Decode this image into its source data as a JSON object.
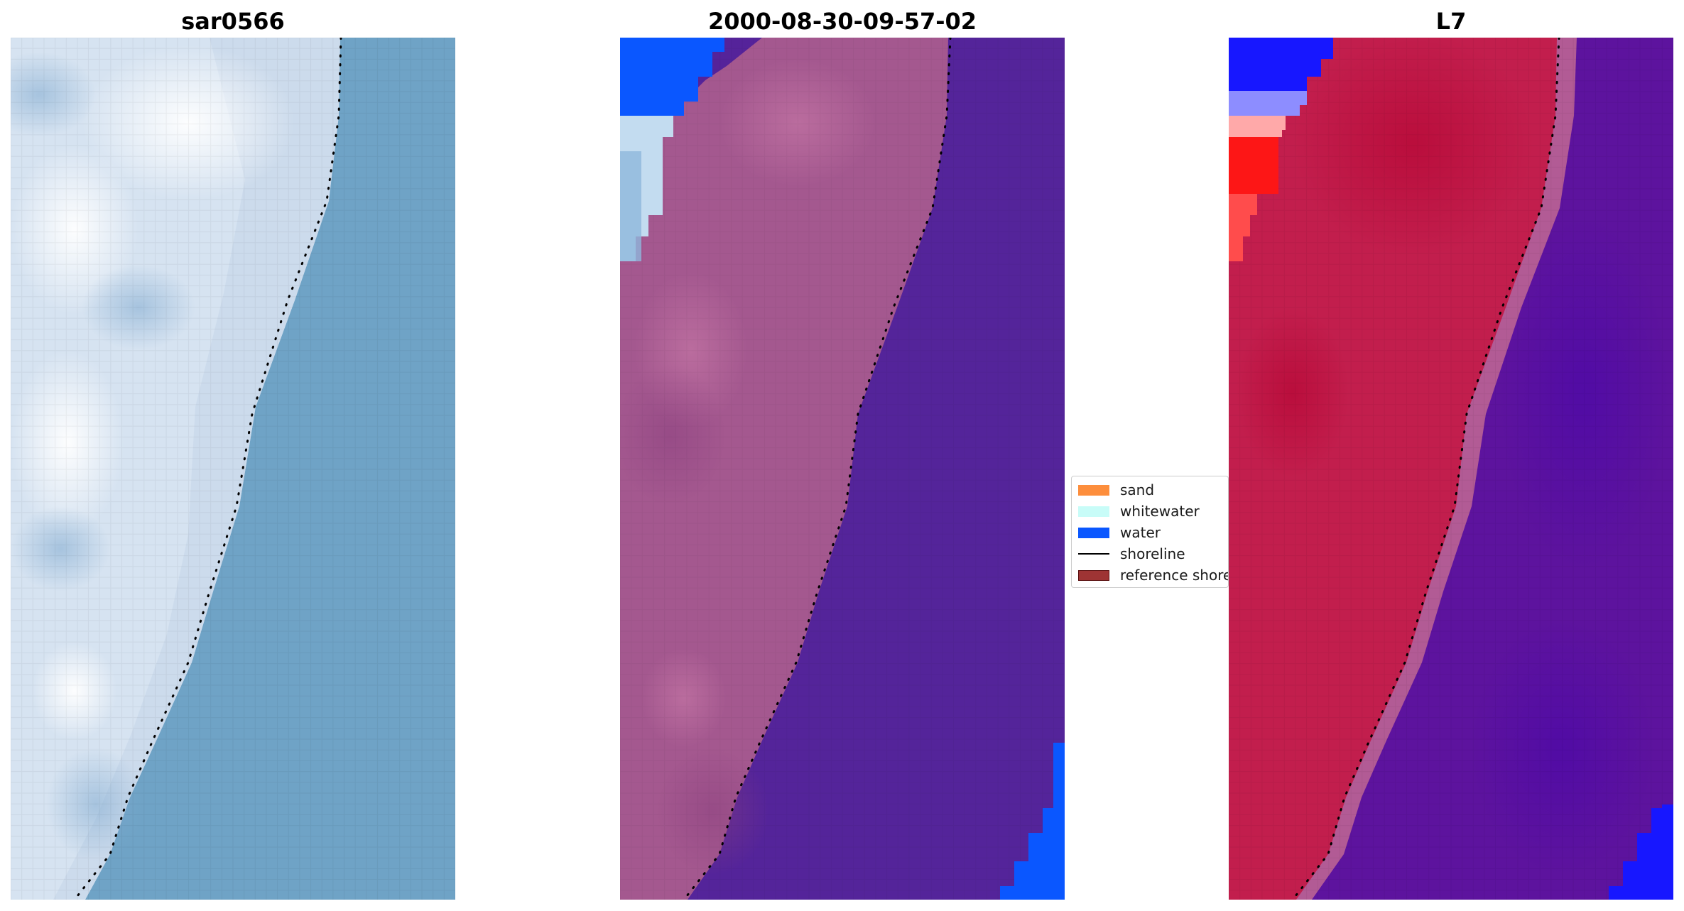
{
  "panels": [
    {
      "id": "rgb",
      "title": "sar0566"
    },
    {
      "id": "classified",
      "title": "2000-08-30-09-57-02"
    },
    {
      "id": "index",
      "title": "L7"
    }
  ],
  "legend": {
    "items": [
      {
        "label": "sand",
        "kind": "patch",
        "color": "#fd8e3c"
      },
      {
        "label": "whitewater",
        "kind": "patch",
        "color": "#c8fcf8"
      },
      {
        "label": "water",
        "kind": "patch",
        "color": "#0a57ff"
      },
      {
        "label": "shoreline",
        "kind": "line",
        "color": "#000000"
      },
      {
        "label": "reference shoreline",
        "kind": "patch",
        "color": "#9e3434"
      }
    ]
  },
  "colors": {
    "rgb_water": "#6fa3c6",
    "rgb_surf": "#dbe6f3",
    "classified_sand": "#a4588f",
    "classified_sea": "#54249a",
    "classified_water": "#0a57ff",
    "classified_whitewater": "#c3dcf0",
    "index_land": "#c21e4d",
    "index_sea": "#5d139e",
    "index_blue": "#1717ff",
    "index_bright_red": "#fd1616",
    "shoreline_dots": "#000000"
  }
}
